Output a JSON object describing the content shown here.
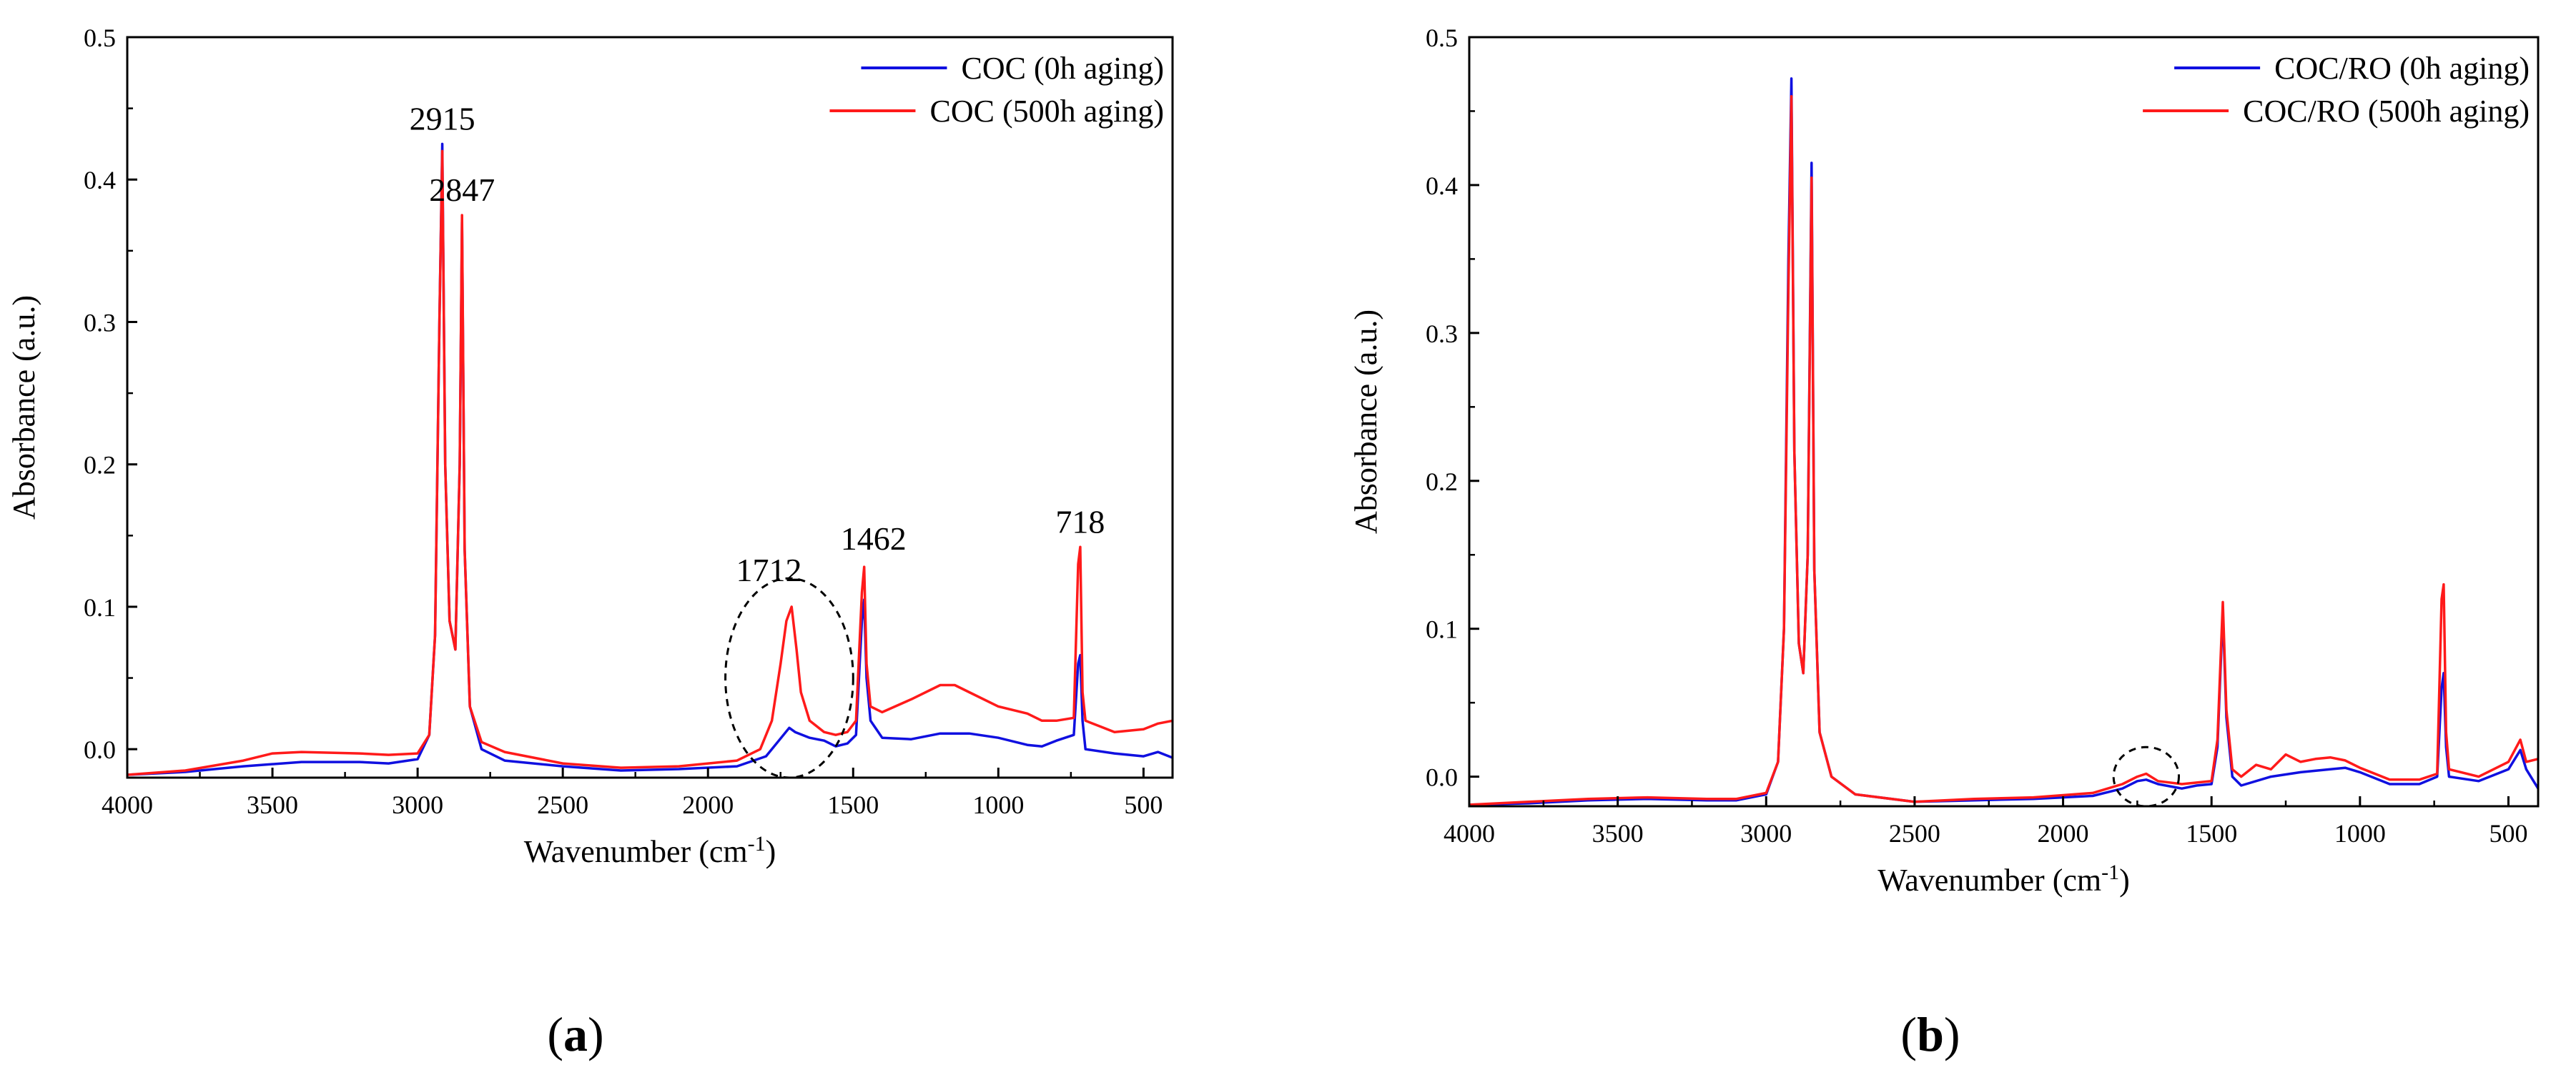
{
  "colors": {
    "series_0h": "#1010e0",
    "series_500h": "#ff1a1a",
    "axis": "#000000"
  },
  "chart_data": [
    {
      "type": "line",
      "panel_label": "a",
      "xlabel": "Wavenumber (cm",
      "xlabel_sup": "-1",
      "xlabel_tail": ")",
      "ylabel": "Absorbance (a.u.)",
      "xlim": [
        4000,
        400
      ],
      "ylim": [
        -0.02,
        0.5
      ],
      "xticks": [
        4000,
        3500,
        3000,
        2500,
        2000,
        1500,
        1000,
        500
      ],
      "yticks": [
        0.0,
        0.1,
        0.2,
        0.3,
        0.4,
        0.5
      ],
      "ytick_labels": [
        "0.0",
        "0.1",
        "0.2",
        "0.3",
        "0.4",
        "0.5"
      ],
      "legend": {
        "position": "top-right"
      },
      "annotations": [
        {
          "text": "2915",
          "x": 2915,
          "y": 0.435
        },
        {
          "text": "2847",
          "x": 2847,
          "y": 0.385
        },
        {
          "text": "1712",
          "x": 1790,
          "y": 0.118
        },
        {
          "text": "1462",
          "x": 1430,
          "y": 0.14
        },
        {
          "text": "718",
          "x": 718,
          "y": 0.152
        }
      ],
      "highlight_circle": {
        "cx": 1720,
        "cy": 0.05,
        "rx": 220,
        "ry": 0.07
      },
      "series": [
        {
          "name": "COC (0h aging)",
          "color": "#1010e0",
          "points": [
            [
              4000,
              -0.018
            ],
            [
              3800,
              -0.016
            ],
            [
              3600,
              -0.012
            ],
            [
              3400,
              -0.009
            ],
            [
              3200,
              -0.009
            ],
            [
              3100,
              -0.01
            ],
            [
              3000,
              -0.007
            ],
            [
              2960,
              0.01
            ],
            [
              2940,
              0.08
            ],
            [
              2925,
              0.3
            ],
            [
              2915,
              0.425
            ],
            [
              2905,
              0.2
            ],
            [
              2890,
              0.09
            ],
            [
              2870,
              0.07
            ],
            [
              2855,
              0.2
            ],
            [
              2847,
              0.37
            ],
            [
              2838,
              0.14
            ],
            [
              2820,
              0.03
            ],
            [
              2780,
              0.0
            ],
            [
              2700,
              -0.008
            ],
            [
              2500,
              -0.012
            ],
            [
              2300,
              -0.015
            ],
            [
              2100,
              -0.014
            ],
            [
              1900,
              -0.012
            ],
            [
              1800,
              -0.005
            ],
            [
              1760,
              0.005
            ],
            [
              1720,
              0.015
            ],
            [
              1700,
              0.012
            ],
            [
              1650,
              0.008
            ],
            [
              1600,
              0.006
            ],
            [
              1560,
              0.002
            ],
            [
              1520,
              0.004
            ],
            [
              1490,
              0.01
            ],
            [
              1470,
              0.09
            ],
            [
              1462,
              0.105
            ],
            [
              1454,
              0.05
            ],
            [
              1440,
              0.02
            ],
            [
              1400,
              0.008
            ],
            [
              1300,
              0.007
            ],
            [
              1200,
              0.011
            ],
            [
              1100,
              0.011
            ],
            [
              1000,
              0.008
            ],
            [
              900,
              0.003
            ],
            [
              850,
              0.002
            ],
            [
              800,
              0.006
            ],
            [
              740,
              0.01
            ],
            [
              725,
              0.06
            ],
            [
              718,
              0.066
            ],
            [
              710,
              0.02
            ],
            [
              700,
              0.0
            ],
            [
              600,
              -0.003
            ],
            [
              500,
              -0.005
            ],
            [
              450,
              -0.002
            ],
            [
              400,
              -0.006
            ]
          ]
        },
        {
          "name": "COC (500h aging)",
          "color": "#ff1a1a",
          "points": [
            [
              4000,
              -0.018
            ],
            [
              3800,
              -0.015
            ],
            [
              3600,
              -0.008
            ],
            [
              3500,
              -0.003
            ],
            [
              3400,
              -0.002
            ],
            [
              3200,
              -0.003
            ],
            [
              3100,
              -0.004
            ],
            [
              3000,
              -0.003
            ],
            [
              2960,
              0.01
            ],
            [
              2940,
              0.08
            ],
            [
              2925,
              0.3
            ],
            [
              2915,
              0.42
            ],
            [
              2905,
              0.2
            ],
            [
              2890,
              0.09
            ],
            [
              2870,
              0.07
            ],
            [
              2855,
              0.2
            ],
            [
              2847,
              0.375
            ],
            [
              2838,
              0.14
            ],
            [
              2820,
              0.03
            ],
            [
              2780,
              0.005
            ],
            [
              2700,
              -0.002
            ],
            [
              2500,
              -0.01
            ],
            [
              2300,
              -0.013
            ],
            [
              2100,
              -0.012
            ],
            [
              1900,
              -0.008
            ],
            [
              1820,
              0.0
            ],
            [
              1780,
              0.02
            ],
            [
              1750,
              0.06
            ],
            [
              1730,
              0.09
            ],
            [
              1712,
              0.1
            ],
            [
              1695,
              0.07
            ],
            [
              1680,
              0.04
            ],
            [
              1650,
              0.02
            ],
            [
              1600,
              0.012
            ],
            [
              1560,
              0.01
            ],
            [
              1520,
              0.012
            ],
            [
              1490,
              0.02
            ],
            [
              1470,
              0.11
            ],
            [
              1462,
              0.128
            ],
            [
              1454,
              0.06
            ],
            [
              1440,
              0.03
            ],
            [
              1400,
              0.026
            ],
            [
              1300,
              0.035
            ],
            [
              1200,
              0.045
            ],
            [
              1150,
              0.045
            ],
            [
              1100,
              0.04
            ],
            [
              1000,
              0.03
            ],
            [
              900,
              0.025
            ],
            [
              850,
              0.02
            ],
            [
              800,
              0.02
            ],
            [
              740,
              0.022
            ],
            [
              725,
              0.13
            ],
            [
              718,
              0.142
            ],
            [
              710,
              0.04
            ],
            [
              700,
              0.02
            ],
            [
              600,
              0.012
            ],
            [
              500,
              0.014
            ],
            [
              450,
              0.018
            ],
            [
              400,
              0.02
            ]
          ]
        }
      ]
    },
    {
      "type": "line",
      "panel_label": "b",
      "xlabel": "Wavenumber (cm",
      "xlabel_sup": "-1",
      "xlabel_tail": ")",
      "ylabel": "Absorbance (a.u.)",
      "xlim": [
        4000,
        400
      ],
      "ylim": [
        -0.02,
        0.5
      ],
      "xticks": [
        4000,
        3500,
        3000,
        2500,
        2000,
        1500,
        1000,
        500
      ],
      "yticks": [
        0.0,
        0.1,
        0.2,
        0.3,
        0.4,
        0.5
      ],
      "ytick_labels": [
        "0.0",
        "0.1",
        "0.2",
        "0.3",
        "0.4",
        "0.5"
      ],
      "legend": {
        "position": "top-right"
      },
      "annotations": [],
      "highlight_circle": {
        "cx": 1720,
        "cy": 0.0,
        "rx": 110,
        "ry": 0.02
      },
      "series": [
        {
          "name": "COC/RO (0h aging)",
          "color": "#1010e0",
          "points": [
            [
              4000,
              -0.019
            ],
            [
              3800,
              -0.018
            ],
            [
              3600,
              -0.016
            ],
            [
              3400,
              -0.015
            ],
            [
              3200,
              -0.016
            ],
            [
              3100,
              -0.016
            ],
            [
              3000,
              -0.012
            ],
            [
              2960,
              0.01
            ],
            [
              2940,
              0.1
            ],
            [
              2925,
              0.35
            ],
            [
              2915,
              0.472
            ],
            [
              2905,
              0.22
            ],
            [
              2890,
              0.09
            ],
            [
              2875,
              0.07
            ],
            [
              2860,
              0.15
            ],
            [
              2847,
              0.415
            ],
            [
              2838,
              0.14
            ],
            [
              2820,
              0.03
            ],
            [
              2780,
              0.0
            ],
            [
              2700,
              -0.012
            ],
            [
              2500,
              -0.017
            ],
            [
              2300,
              -0.016
            ],
            [
              2100,
              -0.015
            ],
            [
              1900,
              -0.013
            ],
            [
              1800,
              -0.008
            ],
            [
              1750,
              -0.003
            ],
            [
              1720,
              -0.002
            ],
            [
              1680,
              -0.005
            ],
            [
              1600,
              -0.008
            ],
            [
              1550,
              -0.006
            ],
            [
              1500,
              -0.005
            ],
            [
              1480,
              0.02
            ],
            [
              1462,
              0.112
            ],
            [
              1450,
              0.04
            ],
            [
              1430,
              0.0
            ],
            [
              1400,
              -0.006
            ],
            [
              1300,
              0.0
            ],
            [
              1200,
              0.003
            ],
            [
              1100,
              0.005
            ],
            [
              1050,
              0.006
            ],
            [
              1000,
              0.003
            ],
            [
              900,
              -0.005
            ],
            [
              800,
              -0.005
            ],
            [
              740,
              0.0
            ],
            [
              725,
              0.06
            ],
            [
              718,
              0.07
            ],
            [
              710,
              0.02
            ],
            [
              700,
              0.0
            ],
            [
              600,
              -0.003
            ],
            [
              500,
              0.005
            ],
            [
              460,
              0.018
            ],
            [
              440,
              0.005
            ],
            [
              400,
              -0.008
            ]
          ]
        },
        {
          "name": "COC/RO (500h aging)",
          "color": "#ff1a1a",
          "points": [
            [
              4000,
              -0.019
            ],
            [
              3800,
              -0.017
            ],
            [
              3600,
              -0.015
            ],
            [
              3400,
              -0.014
            ],
            [
              3200,
              -0.015
            ],
            [
              3100,
              -0.015
            ],
            [
              3000,
              -0.011
            ],
            [
              2960,
              0.01
            ],
            [
              2940,
              0.1
            ],
            [
              2925,
              0.33
            ],
            [
              2915,
              0.46
            ],
            [
              2905,
              0.22
            ],
            [
              2890,
              0.09
            ],
            [
              2875,
              0.07
            ],
            [
              2860,
              0.15
            ],
            [
              2847,
              0.405
            ],
            [
              2838,
              0.14
            ],
            [
              2820,
              0.03
            ],
            [
              2780,
              0.0
            ],
            [
              2700,
              -0.012
            ],
            [
              2500,
              -0.017
            ],
            [
              2300,
              -0.015
            ],
            [
              2100,
              -0.014
            ],
            [
              1900,
              -0.011
            ],
            [
              1800,
              -0.005
            ],
            [
              1750,
              0.0
            ],
            [
              1720,
              0.002
            ],
            [
              1680,
              -0.003
            ],
            [
              1600,
              -0.005
            ],
            [
              1550,
              -0.004
            ],
            [
              1500,
              -0.003
            ],
            [
              1480,
              0.025
            ],
            [
              1462,
              0.118
            ],
            [
              1450,
              0.045
            ],
            [
              1430,
              0.005
            ],
            [
              1400,
              0.0
            ],
            [
              1350,
              0.008
            ],
            [
              1300,
              0.005
            ],
            [
              1250,
              0.015
            ],
            [
              1200,
              0.01
            ],
            [
              1150,
              0.012
            ],
            [
              1100,
              0.013
            ],
            [
              1050,
              0.011
            ],
            [
              1000,
              0.006
            ],
            [
              900,
              -0.002
            ],
            [
              800,
              -0.002
            ],
            [
              740,
              0.002
            ],
            [
              725,
              0.12
            ],
            [
              718,
              0.13
            ],
            [
              710,
              0.03
            ],
            [
              700,
              0.005
            ],
            [
              600,
              0.0
            ],
            [
              500,
              0.01
            ],
            [
              460,
              0.025
            ],
            [
              440,
              0.01
            ],
            [
              400,
              0.012
            ]
          ]
        }
      ]
    }
  ]
}
